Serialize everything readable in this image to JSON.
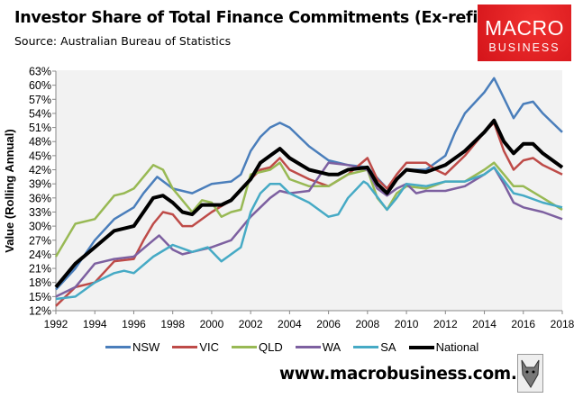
{
  "chart_data": {
    "type": "line",
    "title": "Investor Share of Total Finance Commitments (Ex-refi)",
    "subtitle": "Source: Australian Bureau of Statistics",
    "xlabel": "",
    "ylabel": "Value (Rolling Annual)",
    "xlim": [
      1992,
      2018
    ],
    "ylim": [
      12,
      63
    ],
    "x_ticks": [
      "1992",
      "1994",
      "1996",
      "1998",
      "2000",
      "2002",
      "2004",
      "2006",
      "2008",
      "2010",
      "2012",
      "2014",
      "2016",
      "2018"
    ],
    "y_ticks": [
      "12%",
      "15%",
      "18%",
      "21%",
      "24%",
      "27%",
      "30%",
      "33%",
      "36%",
      "39%",
      "42%",
      "45%",
      "48%",
      "51%",
      "54%",
      "57%",
      "60%",
      "63%"
    ],
    "grid": false,
    "legend_position": "bottom",
    "series": [
      {
        "name": "NSW",
        "color": "#4a7ebb",
        "width": 2.5,
        "x": [
          1992,
          1993,
          1994,
          1995,
          1996,
          1996.5,
          1997.2,
          1998,
          1999,
          2000,
          2001,
          2001.5,
          2002,
          2002.5,
          2003,
          2003.5,
          2004,
          2005,
          2006,
          2007,
          2008,
          2009,
          2009.5,
          2010,
          2011,
          2012,
          2012.5,
          2013,
          2014,
          2014.5,
          2014.8,
          2015.5,
          2016,
          2016.5,
          2017,
          2017.5,
          2018
        ],
        "y": [
          16.5,
          21,
          27,
          31.5,
          34,
          37,
          40.5,
          38,
          37,
          39,
          39.5,
          41,
          46,
          49,
          51,
          52,
          51,
          47,
          44,
          43,
          42.5,
          38,
          40,
          42,
          42,
          45,
          50,
          54,
          58.5,
          61.5,
          59,
          53,
          56,
          56.5,
          54,
          52,
          50
        ]
      },
      {
        "name": "VIC",
        "color": "#be4b48",
        "width": 2.5,
        "x": [
          1992,
          1993,
          1994,
          1995,
          1996,
          1996.5,
          1997,
          1997.5,
          1998,
          1998.5,
          1999,
          2000,
          2001,
          2002,
          2002.5,
          2003,
          2003.5,
          2004,
          2005,
          2006,
          2007,
          2008,
          2008.5,
          2009,
          2009.5,
          2010,
          2011,
          2011.5,
          2012,
          2013,
          2014,
          2014.5,
          2015,
          2015.5,
          2016,
          2016.5,
          2017,
          2018
        ],
        "y": [
          13,
          17,
          18,
          22.5,
          23,
          27,
          30.5,
          33,
          32.5,
          30,
          30,
          33,
          35.5,
          40,
          42,
          42.5,
          44.5,
          42,
          40,
          38.5,
          41,
          44.5,
          40,
          38,
          41,
          43.5,
          43.5,
          42,
          41,
          45,
          50,
          52,
          46,
          42,
          44,
          44.5,
          43,
          41
        ]
      },
      {
        "name": "QLD",
        "color": "#98b954",
        "width": 2.5,
        "x": [
          1992,
          1993,
          1994,
          1995,
          1995.5,
          1996,
          1997,
          1997.5,
          1998,
          1999,
          1999.5,
          2000,
          2000.5,
          2001,
          2001.5,
          2002,
          2003,
          2003.5,
          2004,
          2005,
          2006,
          2007,
          2008,
          2008.5,
          2009,
          2009.5,
          2010,
          2011,
          2012,
          2013,
          2014,
          2014.5,
          2015,
          2015.5,
          2016,
          2017,
          2018
        ],
        "y": [
          23.5,
          30.5,
          31.5,
          36.5,
          37,
          38,
          43,
          42,
          38,
          33,
          35.5,
          35,
          32,
          33,
          33.5,
          41,
          42,
          43.5,
          40,
          38.5,
          38.5,
          41,
          42,
          36,
          33.5,
          37,
          38.5,
          38,
          39.5,
          39.5,
          42,
          43.5,
          41,
          38.5,
          38.5,
          36,
          33.5
        ]
      },
      {
        "name": "WA",
        "color": "#7d60a0",
        "width": 2.5,
        "x": [
          1992,
          1993,
          1994,
          1995,
          1996,
          1997,
          1997.3,
          1998,
          1998.5,
          1999,
          2000,
          2001,
          2002,
          2003,
          2003.5,
          2004,
          2005,
          2006,
          2007,
          2008,
          2008.5,
          2009,
          2009.5,
          2010,
          2010.5,
          2011,
          2012,
          2013,
          2014,
          2014.5,
          2015,
          2015.5,
          2016,
          2017,
          2018
        ],
        "y": [
          15,
          17,
          22,
          23,
          23.5,
          27,
          28,
          25,
          24,
          24.5,
          25.5,
          27,
          32,
          36,
          37.5,
          37,
          37.5,
          43.5,
          43,
          42,
          38,
          36.5,
          38,
          39,
          37,
          37.5,
          37.5,
          38.5,
          41,
          42.5,
          39,
          35,
          34,
          33,
          31.5
        ]
      },
      {
        "name": "SA",
        "color": "#46aac5",
        "width": 2.5,
        "x": [
          1992,
          1993,
          1994,
          1995,
          1995.5,
          1996,
          1997,
          1998,
          1999,
          1999.8,
          2000.5,
          2001.5,
          2002,
          2002.5,
          2003,
          2003.5,
          2004,
          2005,
          2006,
          2006.5,
          2007,
          2007.8,
          2008,
          2009,
          2009.5,
          2010,
          2011,
          2012,
          2013,
          2014,
          2014.5,
          2015.5,
          2016,
          2017,
          2018
        ],
        "y": [
          14.5,
          15,
          18,
          20,
          20.5,
          20,
          23.5,
          26,
          24.5,
          25.5,
          22.5,
          25.5,
          33,
          37,
          39,
          39,
          37,
          35,
          32,
          32.5,
          36,
          39.5,
          39,
          33.5,
          36,
          39,
          38.5,
          39.5,
          39.5,
          41,
          42.5,
          37,
          36.5,
          35,
          34
        ]
      },
      {
        "name": "National",
        "color": "#000000",
        "width": 4,
        "x": [
          1992,
          1993,
          1994,
          1995,
          1996,
          1996.5,
          1997,
          1997.5,
          1998,
          1998.5,
          1999,
          1999.5,
          2000.5,
          2001,
          2002,
          2002.5,
          2003,
          2003.5,
          2004,
          2005,
          2006,
          2006.5,
          2007,
          2008,
          2008.5,
          2009,
          2009.5,
          2010,
          2011,
          2012,
          2013,
          2014,
          2014.5,
          2015,
          2015.5,
          2016,
          2016.5,
          2017,
          2018
        ],
        "y": [
          17,
          22,
          25.5,
          29,
          30,
          33,
          36,
          36.5,
          35,
          33,
          32.5,
          34.5,
          34.5,
          35.5,
          40,
          43.5,
          45,
          46.5,
          44.5,
          42,
          41,
          41,
          42,
          42.5,
          39,
          37,
          40,
          42,
          41.5,
          43,
          46,
          50,
          52.5,
          48,
          45.5,
          47.5,
          47.5,
          45.5,
          42.5
        ]
      }
    ]
  },
  "logo": {
    "line1": "MACRO",
    "line2": "BUSINESS"
  },
  "footer": {
    "url": "www.macrobusiness.com.au"
  }
}
